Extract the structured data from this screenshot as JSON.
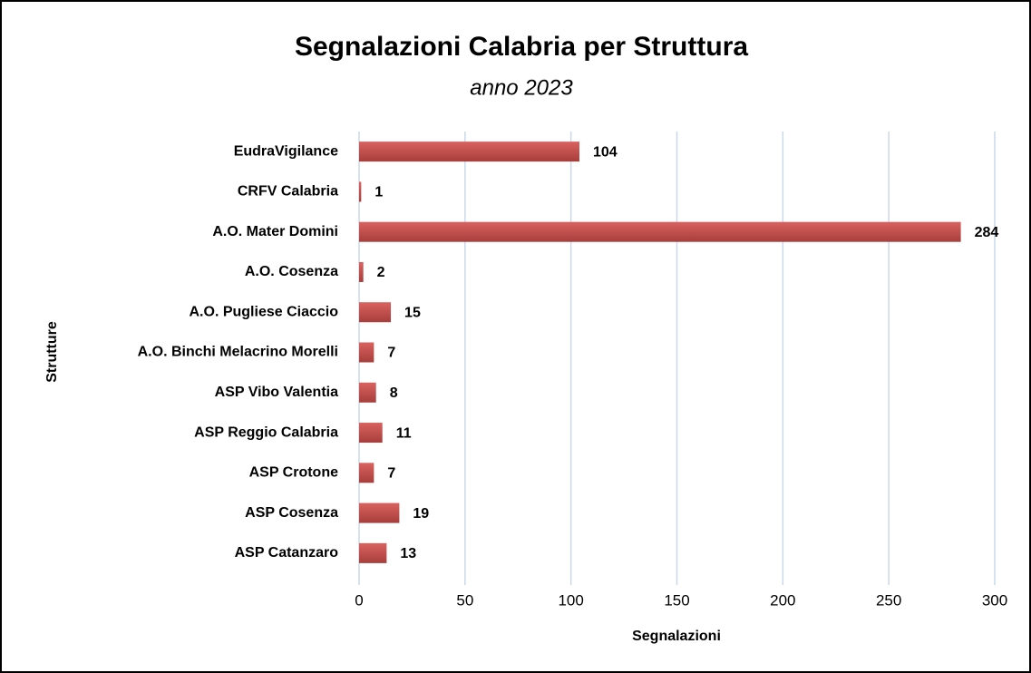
{
  "chart_data": {
    "type": "barh",
    "title": "Segnalazioni Calabria per Struttura",
    "subtitle": "anno 2023",
    "xlabel": "Segnalazioni",
    "ylabel": "Strutture",
    "categories": [
      "EudraVigilance",
      "CRFV Calabria",
      "A.O. Mater Domini",
      "A.O. Cosenza",
      "A.O. Pugliese Ciaccio",
      "A.O. Binchi Melacrino Morelli",
      "ASP Vibo Valentia",
      "ASP Reggio Calabria",
      "ASP Crotone",
      "ASP Cosenza",
      "ASP Catanzaro"
    ],
    "values": [
      104,
      1,
      284,
      2,
      15,
      7,
      8,
      11,
      7,
      19,
      13
    ],
    "color": "#c0504d",
    "xlim": [
      0,
      300
    ],
    "xticks": [
      0,
      50,
      100,
      150,
      200,
      250,
      300
    ],
    "grid": true
  }
}
